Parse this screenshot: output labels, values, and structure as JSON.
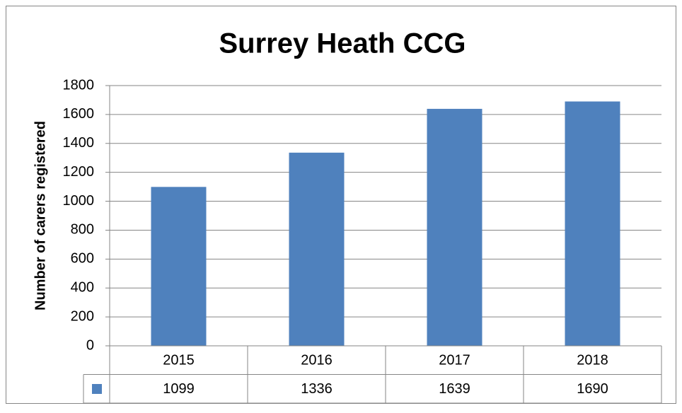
{
  "chart_data": {
    "type": "bar",
    "title": "Surrey Heath CCG",
    "y_label": "Number of carers registered",
    "categories": [
      "2015",
      "2016",
      "2017",
      "2018"
    ],
    "values": [
      1099,
      1336,
      1639,
      1690
    ],
    "color": "#4f81bd",
    "ylim": [
      0,
      1800
    ],
    "yticks": [
      0,
      200,
      400,
      600,
      800,
      1000,
      1200,
      1400,
      1600,
      1800
    ],
    "grid": true
  }
}
